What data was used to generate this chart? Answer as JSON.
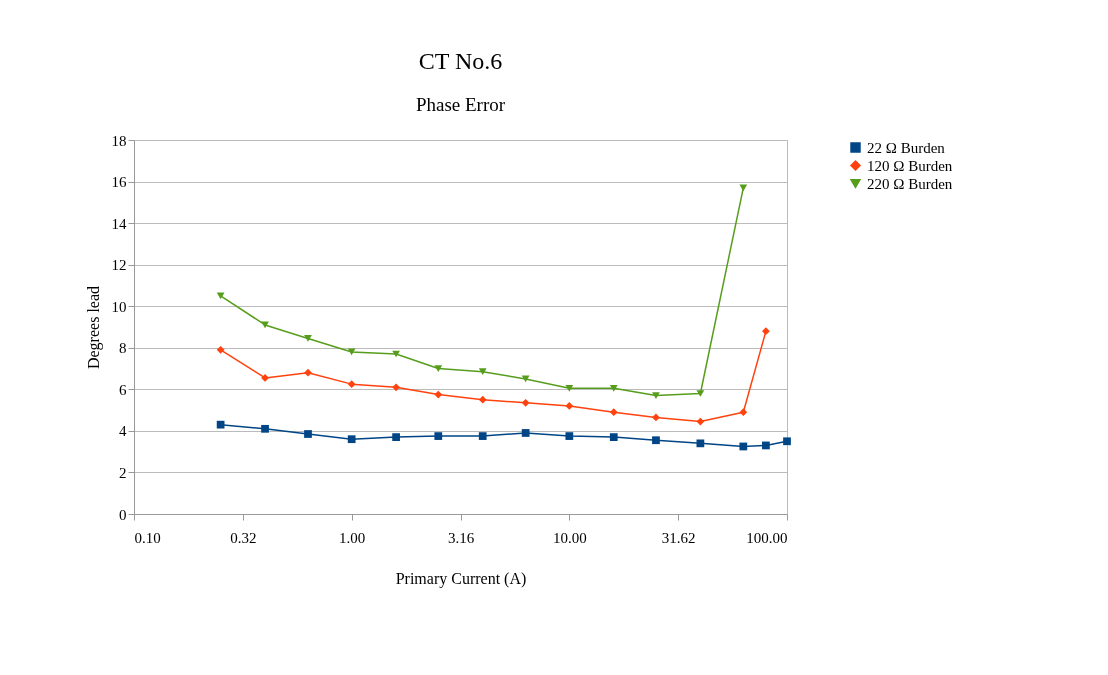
{
  "chart_data": {
    "type": "line",
    "title": "CT No.6",
    "subtitle": "Phase Error",
    "xlabel": "Primary Current (A)",
    "ylabel": "Degrees lead",
    "x": [
      0.25,
      0.4,
      0.63,
      1,
      1.6,
      2.5,
      4,
      6.3,
      10,
      16,
      25,
      40,
      63,
      80,
      100
    ],
    "series": [
      {
        "name": "22 Ω Burden",
        "color": "#004586",
        "marker": "square",
        "values": [
          4.3,
          4.1,
          3.85,
          3.6,
          3.7,
          3.75,
          3.75,
          3.9,
          3.75,
          3.7,
          3.55,
          3.4,
          3.25,
          3.3,
          3.5
        ]
      },
      {
        "name": "120 Ω Burden",
        "color": "#ff420e",
        "marker": "diamond",
        "values": [
          7.9,
          6.55,
          6.8,
          6.25,
          6.1,
          5.75,
          5.5,
          5.35,
          5.2,
          4.9,
          4.65,
          4.45,
          4.9,
          8.8,
          null
        ]
      },
      {
        "name": "220 Ω Burden",
        "color": "#579d1c",
        "marker": "triangle",
        "values": [
          10.5,
          9.1,
          8.45,
          7.8,
          7.7,
          7.0,
          6.85,
          6.5,
          6.05,
          6.05,
          5.7,
          5.8,
          15.7,
          null,
          null
        ]
      }
    ],
    "log": "x",
    "xlim": [
      0.1,
      100
    ],
    "xticks": [
      {
        "value": 0.1,
        "label": "0.10"
      },
      {
        "value": 0.316228,
        "label": "0.32"
      },
      {
        "value": 1,
        "label": "1.00"
      },
      {
        "value": 3.16228,
        "label": "3.16"
      },
      {
        "value": 10,
        "label": "10.00"
      },
      {
        "value": 31.6228,
        "label": "31.62"
      },
      {
        "value": 100,
        "label": "100.00"
      }
    ],
    "ylim": [
      0,
      18
    ],
    "yticks": [
      0,
      2,
      4,
      6,
      8,
      10,
      12,
      14,
      16,
      18
    ],
    "grid": "y",
    "legend": "right",
    "line_style": "solid"
  }
}
